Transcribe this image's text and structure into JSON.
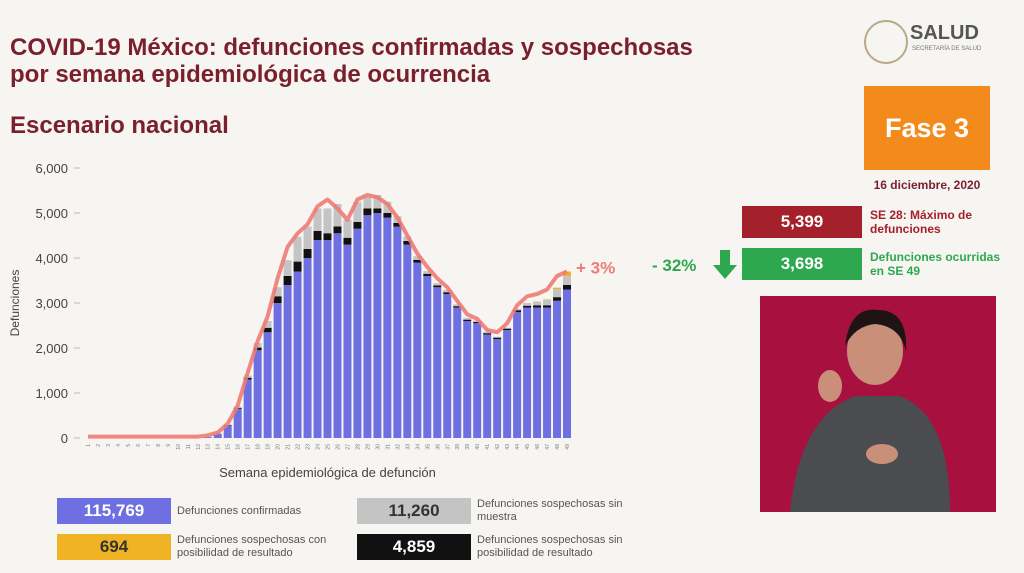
{
  "header": {
    "title_line1": "COVID-19 México: defunciones confirmadas y sospechosas",
    "title_line2": "por semana epidemiológica de ocurrencia",
    "subtitle": "Escenario nacional",
    "logo": "SALUD",
    "logo_sub": "SECRETARÍA DE SALUD"
  },
  "panel": {
    "phase": "Fase 3",
    "date": "16 diciembre, 2020",
    "max_value": "5,399",
    "max_text": "SE 28: Máximo de defunciones",
    "change": "- 32%",
    "last_value": "3,698",
    "last_text": "Defunciones ocurridas en SE 49"
  },
  "chart_data": {
    "type": "bar",
    "stacked": true,
    "y_label": "Defunciones",
    "x_label": "Semana epidemiológica de defunción",
    "annotation": "+ 3%",
    "categories": [
      "1",
      "2",
      "3",
      "4",
      "5",
      "6",
      "7",
      "8",
      "9",
      "10",
      "11",
      "12",
      "13",
      "14",
      "15",
      "16",
      "17",
      "18",
      "19",
      "20",
      "21",
      "22",
      "23",
      "24",
      "25",
      "26",
      "27",
      "28",
      "29",
      "30",
      "31",
      "32",
      "33",
      "34",
      "35",
      "36",
      "37",
      "38",
      "39",
      "40",
      "41",
      "42",
      "43",
      "44",
      "45",
      "46",
      "47",
      "48",
      "49"
    ],
    "ylim": [
      0,
      6000
    ],
    "yticks": [
      0,
      {
        "value": 1000,
        "label": "1,000"
      },
      {
        "value": 2000,
        "label": "2,000"
      },
      {
        "value": 3000,
        "label": "3,000"
      },
      {
        "value": 4000,
        "label": "4,000"
      },
      {
        "value": 5000,
        "label": "5,000"
      },
      {
        "value": 6000,
        "label": "6,000"
      }
    ],
    "series": [
      {
        "name": "Defunciones confirmadas",
        "color": "#6e6fe0",
        "total": {
          "value": 115769,
          "label": "115,769"
        },
        "values": [
          0,
          0,
          0,
          0,
          0,
          0,
          0,
          0,
          0,
          0,
          0,
          0,
          20,
          90,
          280,
          650,
          1300,
          1950,
          2350,
          3000,
          3400,
          3700,
          4000,
          4400,
          4400,
          4550,
          4300,
          4650,
          4950,
          5000,
          4900,
          4700,
          4300,
          3900,
          3600,
          3350,
          3200,
          2900,
          2600,
          2550,
          2300,
          2200,
          2400,
          2800,
          2900,
          2900,
          2900,
          3050,
          3300
        ]
      },
      {
        "name": "Defunciones sospechosas sin posibilidad de resultado",
        "color": "#111111",
        "total": {
          "value": 4859,
          "label": "4,859"
        },
        "values": [
          0,
          0,
          0,
          0,
          0,
          0,
          0,
          0,
          0,
          0,
          0,
          0,
          0,
          5,
          10,
          20,
          40,
          60,
          100,
          150,
          200,
          220,
          200,
          200,
          150,
          150,
          150,
          150,
          150,
          100,
          100,
          80,
          80,
          60,
          50,
          40,
          40,
          30,
          30,
          30,
          30,
          30,
          30,
          40,
          40,
          50,
          50,
          80,
          100
        ]
      },
      {
        "name": "Defunciones sospechosas sin muestra",
        "color": "#c4c4c4",
        "total": {
          "value": 11260,
          "label": "11,260"
        },
        "values": [
          0,
          0,
          0,
          0,
          0,
          0,
          0,
          0,
          0,
          0,
          0,
          0,
          0,
          5,
          10,
          30,
          50,
          100,
          150,
          200,
          350,
          550,
          500,
          500,
          550,
          500,
          400,
          450,
          250,
          300,
          250,
          150,
          100,
          80,
          60,
          50,
          50,
          40,
          40,
          30,
          30,
          20,
          20,
          30,
          60,
          80,
          120,
          180,
          200
        ]
      },
      {
        "name": "Defunciones sospechosas con posibilidad de resultado",
        "color": "#f0b323",
        "total": {
          "value": 694,
          "label": "694"
        },
        "values": [
          0,
          0,
          0,
          0,
          0,
          0,
          0,
          0,
          0,
          0,
          0,
          0,
          0,
          0,
          0,
          0,
          0,
          0,
          0,
          0,
          0,
          0,
          0,
          0,
          0,
          0,
          0,
          0,
          0,
          0,
          0,
          0,
          0,
          0,
          0,
          0,
          0,
          0,
          0,
          0,
          0,
          0,
          0,
          0,
          0,
          5,
          10,
          30,
          100
        ]
      }
    ],
    "line": {
      "color": "#ee7b73",
      "values": [
        30,
        30,
        30,
        30,
        30,
        30,
        30,
        30,
        30,
        30,
        30,
        30,
        60,
        120,
        320,
        720,
        1450,
        2150,
        2700,
        3550,
        4250,
        4550,
        4750,
        5150,
        5300,
        5100,
        4850,
        5300,
        5400,
        5350,
        5200,
        4900,
        4500,
        4100,
        3800,
        3550,
        3350,
        3050,
        2750,
        2650,
        2400,
        2350,
        2550,
        2950,
        3150,
        3200,
        3300,
        3600,
        3700
      ]
    },
    "legend_order": [
      0,
      3,
      2,
      1
    ]
  }
}
